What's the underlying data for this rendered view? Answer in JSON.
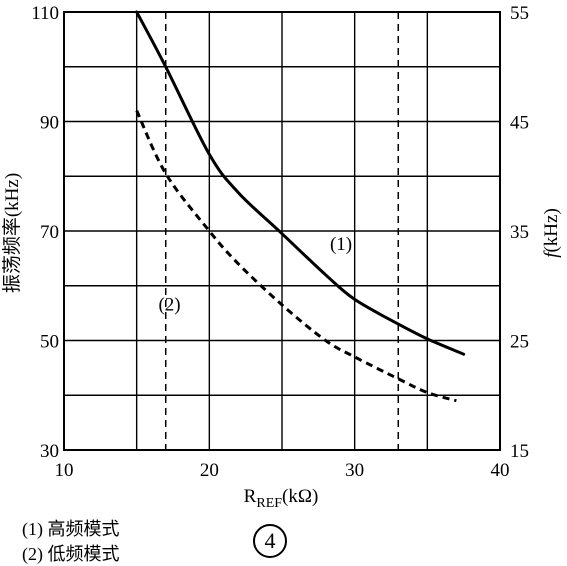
{
  "chart_data": {
    "type": "line",
    "xlabel_main": "R",
    "xlabel_sub": "REF",
    "xlabel_unit": "(kΩ)",
    "ylabel_left": "振荡频率(kHz)",
    "ylabel_right_italic": "f",
    "ylabel_right_unit": "(kHz)",
    "xlim": [
      10,
      40
    ],
    "ylim_left": [
      30,
      110
    ],
    "ylim_right": [
      15,
      55
    ],
    "x_ticks": [
      "10",
      "20",
      "30",
      "40"
    ],
    "y_left_ticks": [
      "30",
      "50",
      "70",
      "90",
      "110"
    ],
    "y_right_ticks": [
      "15",
      "25",
      "35",
      "45",
      "55"
    ],
    "x_minor_gridlines": [
      15,
      25,
      35
    ],
    "y_minor_gridlines": [
      40,
      60,
      80,
      100
    ],
    "reference_lines_x": [
      17,
      33
    ],
    "grid": true,
    "series": [
      {
        "name": "(1)",
        "label_near": [
          28.3,
          66.5
        ],
        "style": "solid",
        "points": [
          [
            15,
            110
          ],
          [
            17,
            100
          ],
          [
            20,
            84
          ],
          [
            22,
            77
          ],
          [
            25,
            69.5
          ],
          [
            28,
            62
          ],
          [
            30,
            57.5
          ],
          [
            33,
            53
          ],
          [
            35,
            50.3
          ],
          [
            37.5,
            47.5
          ]
        ]
      },
      {
        "name": "(2)",
        "label_near": [
          16.5,
          55.5
        ],
        "style": "dashed",
        "points": [
          [
            15,
            92
          ],
          [
            17,
            80.5
          ],
          [
            20,
            70
          ],
          [
            22,
            64
          ],
          [
            25,
            56.5
          ],
          [
            28,
            50
          ],
          [
            30,
            47
          ],
          [
            33,
            43
          ],
          [
            35,
            40.5
          ],
          [
            37,
            39
          ]
        ]
      }
    ]
  },
  "legend": {
    "item1": "(1) 高频模式",
    "item2": "(2) 低频模式"
  },
  "figure_number": "4"
}
